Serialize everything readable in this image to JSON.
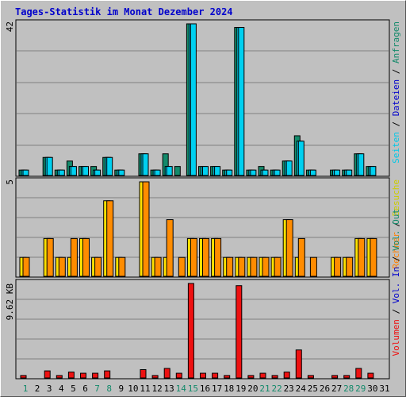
{
  "title": "Tages-Statistik im Monat Dezember 2024",
  "colors": {
    "background": "#c0c0c0",
    "title": "#0000cc",
    "hits": "#148a6b",
    "files": "#00d0f0",
    "pages": "#00d0f0",
    "visits": "#ffe100",
    "sites": "#ff8c00",
    "kbytes": "#ee1111",
    "weekend_label": "#148a6b",
    "weekday_label": "#000000"
  },
  "right_legend": {
    "top": [
      {
        "text": "Anfragen",
        "color": "#148a6b"
      },
      {
        "text": "Dateien",
        "color": "#0000cc"
      },
      {
        "text": "Seiten",
        "color": "#00c8e8"
      }
    ],
    "middle": [
      {
        "text": "Besuche",
        "color": "#cccc00"
      },
      {
        "text": "Rechner",
        "color": "#ff8000"
      }
    ],
    "bottom": [
      {
        "text": "Vol. Out",
        "color": "#148a6b"
      },
      {
        "text": "Vol. In",
        "color": "#0000cc"
      },
      {
        "text": "Volumen",
        "color": "#ee1111"
      }
    ],
    "separator": " / "
  },
  "chart_data": [
    {
      "type": "bar",
      "name": "hits-files-pages",
      "max_label": "42",
      "ylim": [
        0,
        42
      ],
      "categories": [
        "1",
        "2",
        "3",
        "4",
        "5",
        "6",
        "7",
        "8",
        "9",
        "10",
        "11",
        "12",
        "13",
        "14",
        "15",
        "16",
        "17",
        "18",
        "19",
        "20",
        "21",
        "22",
        "23",
        "24",
        "25",
        "26",
        "27",
        "28",
        "29",
        "30",
        "31"
      ],
      "weekend_days": [
        "1",
        "7",
        "8",
        "14",
        "15",
        "21",
        "22",
        "28",
        "29"
      ],
      "series": [
        {
          "name": "Anfragen",
          "values": [
            1.5,
            0,
            5,
            1.5,
            4,
            2.5,
            2.5,
            5,
            1.5,
            0,
            6,
            1.5,
            6,
            2.5,
            42,
            2.5,
            2.5,
            1.5,
            41,
            1.5,
            2.5,
            1.5,
            4,
            11,
            1.5,
            0,
            1.5,
            1.5,
            6,
            2.5,
            0
          ]
        },
        {
          "name": "Dateien",
          "values": [
            1.5,
            0,
            5,
            1.5,
            2.5,
            2.5,
            1.5,
            5,
            1.5,
            0,
            6,
            1.5,
            2.5,
            0,
            42,
            2.5,
            2.5,
            1.5,
            41,
            1.5,
            1.5,
            1.5,
            4,
            9.5,
            1.5,
            0,
            1.5,
            1.5,
            6,
            2.5,
            0
          ]
        },
        {
          "name": "Seiten",
          "values": [
            1.5,
            0,
            5,
            1.5,
            2.5,
            2.5,
            1.5,
            5,
            1.5,
            0,
            6,
            1.5,
            2.5,
            0,
            42,
            2.5,
            2.5,
            1.5,
            41,
            1.5,
            1.5,
            1.5,
            4,
            9.5,
            1.5,
            0,
            1.5,
            1.5,
            6,
            2.5,
            0
          ]
        }
      ]
    },
    {
      "type": "bar",
      "name": "visits-sites",
      "max_label": "5",
      "ylim": [
        0,
        5
      ],
      "categories": [
        "1",
        "2",
        "3",
        "4",
        "5",
        "6",
        "7",
        "8",
        "9",
        "10",
        "11",
        "12",
        "13",
        "14",
        "15",
        "16",
        "17",
        "18",
        "19",
        "20",
        "21",
        "22",
        "23",
        "24",
        "25",
        "26",
        "27",
        "28",
        "29",
        "30",
        "31"
      ],
      "series": [
        {
          "name": "Besuche",
          "values": [
            1,
            0,
            2,
            1,
            1,
            2,
            1,
            4,
            1,
            0,
            5,
            1,
            1,
            0,
            2,
            2,
            2,
            1,
            1,
            1,
            1,
            1,
            3,
            1,
            0,
            0,
            1,
            1,
            2,
            2,
            0
          ]
        },
        {
          "name": "Rechner",
          "values": [
            1,
            0,
            2,
            1,
            2,
            2,
            1,
            4,
            1,
            0,
            5,
            1,
            3,
            1,
            2,
            2,
            2,
            1,
            1,
            1,
            1,
            1,
            3,
            2,
            1,
            0,
            1,
            1,
            2,
            2,
            0
          ]
        }
      ]
    },
    {
      "type": "bar",
      "name": "volume",
      "max_label": "9.62 KB",
      "ylim": [
        0,
        9.62
      ],
      "categories": [
        "1",
        "2",
        "3",
        "4",
        "5",
        "6",
        "7",
        "8",
        "9",
        "10",
        "11",
        "12",
        "13",
        "14",
        "15",
        "16",
        "17",
        "18",
        "19",
        "20",
        "21",
        "22",
        "23",
        "24",
        "25",
        "26",
        "27",
        "28",
        "29",
        "30",
        "31"
      ],
      "series": [
        {
          "name": "Volumen",
          "values": [
            0.25,
            0,
            0.72,
            0.25,
            0.6,
            0.48,
            0.48,
            0.72,
            0,
            0,
            0.85,
            0.25,
            0.97,
            0.48,
            9.62,
            0.48,
            0.48,
            0.25,
            9.4,
            0.25,
            0.48,
            0.25,
            0.6,
            2.85,
            0.25,
            0,
            0.25,
            0.25,
            0.97,
            0.48,
            0
          ]
        }
      ]
    }
  ]
}
